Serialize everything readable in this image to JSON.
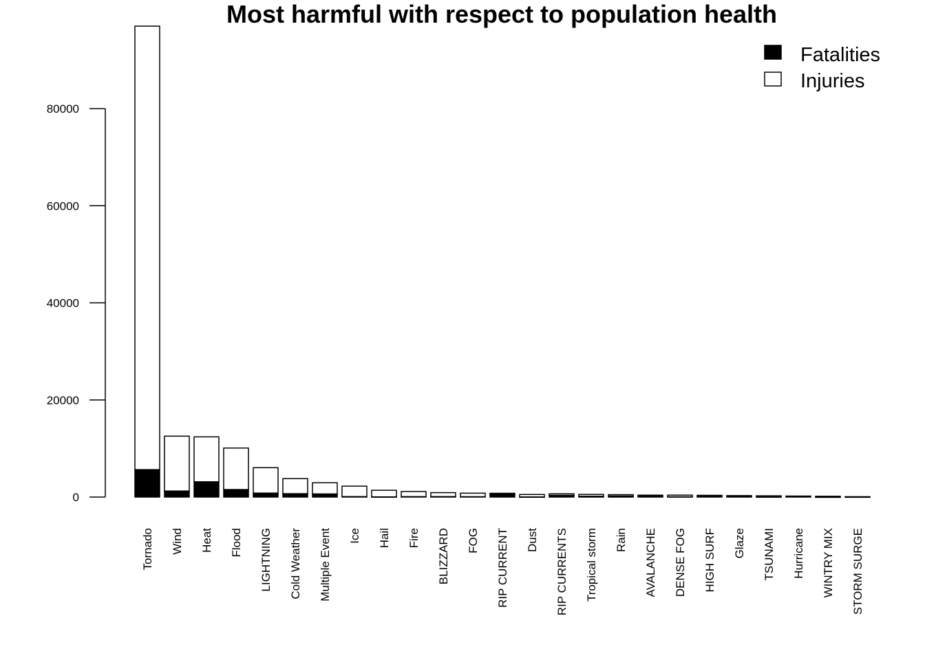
{
  "chart_data": {
    "type": "bar",
    "stacked": true,
    "title": "Most harmful with respect to population health",
    "xlabel": "",
    "ylabel": "",
    "ylim": [
      0,
      97000
    ],
    "yticks": [
      0,
      20000,
      40000,
      60000,
      80000
    ],
    "grid": false,
    "legend_position": "top-right",
    "categories": [
      "Tornado",
      "Wind",
      "Heat",
      "Flood",
      "LIGHTNING",
      "Cold Weather",
      "Multiple Event",
      "Ice",
      "Hail",
      "Fire",
      "BLIZZARD",
      "FOG",
      "RIP CURRENT",
      "Dust",
      "RIP CURRENTS",
      "Tropical storm",
      "Rain",
      "AVALANCHE",
      "DENSE FOG",
      "HIGH SURF",
      "Glaze",
      "TSUNAMI",
      "Hurricane",
      "WINTRY MIX",
      "STORM SURGE"
    ],
    "series": [
      {
        "name": "Fatalities",
        "color": "#000000",
        "values": [
          5650,
          1250,
          3150,
          1550,
          820,
          700,
          650,
          100,
          40,
          90,
          100,
          80,
          570,
          30,
          370,
          170,
          220,
          225,
          60,
          160,
          90,
          35,
          130,
          10,
          25
        ]
      },
      {
        "name": "Injuries",
        "color": "#ffffff",
        "values": [
          91350,
          11300,
          9250,
          8550,
          5230,
          3100,
          2300,
          2150,
          1360,
          1060,
          810,
          720,
          210,
          500,
          300,
          380,
          270,
          170,
          340,
          200,
          210,
          230,
          80,
          160,
          50
        ]
      }
    ]
  }
}
